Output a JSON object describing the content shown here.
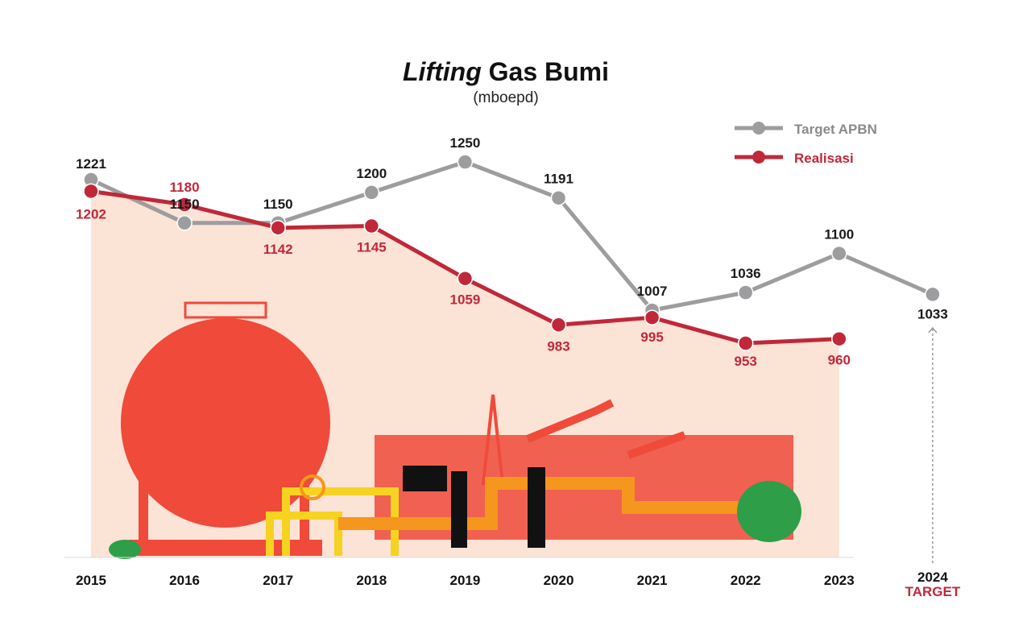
{
  "chart_data": {
    "type": "line",
    "title_italic": "Lifting",
    "title_rest": "Gas Bumi",
    "subtitle": "(mboepd)",
    "categories": [
      "2015",
      "2016",
      "2017",
      "2018",
      "2019",
      "2020",
      "2021",
      "2022",
      "2023",
      "2024"
    ],
    "target_category_note": "TARGET",
    "series": [
      {
        "name": "Target APBN",
        "color": "#9d9d9f",
        "label_color": "#1a1a1a",
        "values": [
          1221,
          1150,
          1150,
          1200,
          1250,
          1191,
          1007,
          1036,
          1100,
          1033
        ]
      },
      {
        "name": "Realisasi",
        "color": "#c0283a",
        "label_color": "#c0283a",
        "values": [
          1202,
          1180,
          1142,
          1145,
          1059,
          983,
          995,
          953,
          960,
          null
        ]
      }
    ],
    "legend_position": "top-right",
    "grid": false,
    "colors": {
      "area_fill": "#fbe3d6",
      "tank": "#ef4a3a",
      "pipe_yellow": "#f5d320",
      "pipe_orange": "#f5961e",
      "plant_green": "#2e9e48"
    }
  }
}
